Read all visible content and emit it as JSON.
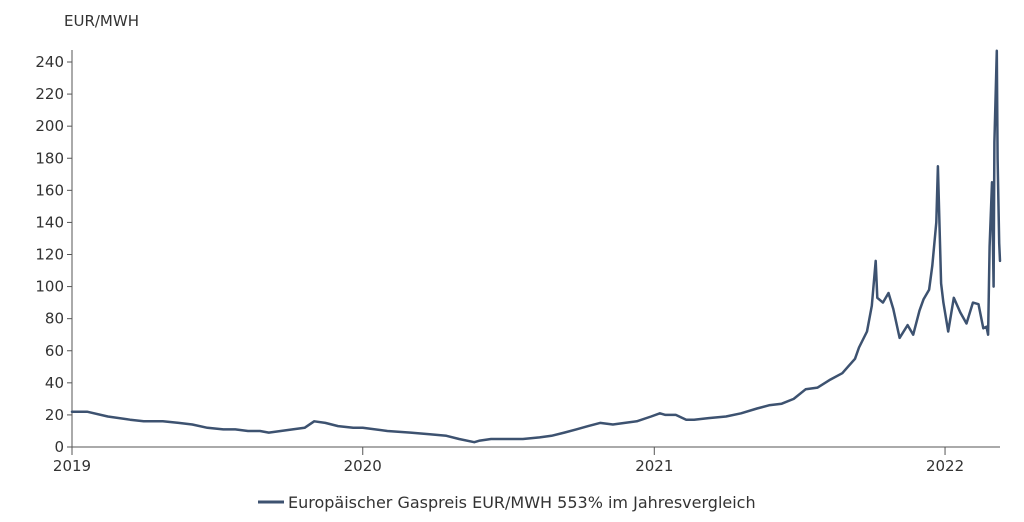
{
  "chart_data": {
    "type": "line",
    "ylabel": "EUR/MWH",
    "ylim": [
      0,
      250
    ],
    "yticks": [
      "0",
      "20",
      "40",
      "60",
      "80",
      "100",
      "120",
      "140",
      "160",
      "180",
      "200",
      "220",
      "240"
    ],
    "xticks": [
      "2019",
      "2020",
      "2021",
      "2022"
    ],
    "xlim": [
      "2019-01-01",
      "2022-03-11"
    ],
    "grid": false,
    "legend_position": "bottom",
    "colors": {
      "series": "#3d5270",
      "axis": "#555555",
      "text": "#333333"
    },
    "series": [
      {
        "name": "Europäischer Gaspreis EUR/MWH 553% im Jahresvergleich",
        "x": [
          "2019-01-01",
          "2019-01-20",
          "2019-02-15",
          "2019-03-15",
          "2019-04-01",
          "2019-04-25",
          "2019-05-15",
          "2019-06-01",
          "2019-06-20",
          "2019-07-10",
          "2019-07-25",
          "2019-08-10",
          "2019-08-25",
          "2019-09-05",
          "2019-09-20",
          "2019-10-05",
          "2019-10-20",
          "2019-11-01",
          "2019-11-15",
          "2019-12-01",
          "2019-12-20",
          "2020-01-01",
          "2020-02-01",
          "2020-03-01",
          "2020-03-25",
          "2020-04-15",
          "2020-05-01",
          "2020-05-20",
          "2020-05-27",
          "2020-06-10",
          "2020-07-01",
          "2020-07-20",
          "2020-08-10",
          "2020-08-25",
          "2020-09-10",
          "2020-09-25",
          "2020-10-10",
          "2020-10-25",
          "2020-11-10",
          "2020-11-25",
          "2020-12-10",
          "2020-12-28",
          "2021-01-08",
          "2021-01-15",
          "2021-01-28",
          "2021-02-10",
          "2021-02-20",
          "2021-03-10",
          "2021-04-01",
          "2021-04-20",
          "2021-05-10",
          "2021-05-25",
          "2021-06-10",
          "2021-06-25",
          "2021-07-10",
          "2021-07-25",
          "2021-08-10",
          "2021-08-25",
          "2021-09-01",
          "2021-09-10",
          "2021-09-15",
          "2021-09-25",
          "2021-10-01",
          "2021-10-06",
          "2021-10-08",
          "2021-10-15",
          "2021-10-22",
          "2021-10-28",
          "2021-11-05",
          "2021-11-15",
          "2021-11-22",
          "2021-11-30",
          "2021-12-05",
          "2021-12-12",
          "2021-12-16",
          "2021-12-21",
          "2021-12-23",
          "2021-12-27",
          "2021-12-30",
          "2022-01-05",
          "2022-01-12",
          "2022-01-20",
          "2022-01-28",
          "2022-02-05",
          "2022-02-12",
          "2022-02-18",
          "2022-02-22",
          "2022-02-24",
          "2022-02-26",
          "2022-03-01",
          "2022-03-03",
          "2022-03-04",
          "2022-03-07",
          "2022-03-08",
          "2022-03-10",
          "2022-03-11"
        ],
        "values": [
          22,
          22,
          19,
          17,
          16,
          16,
          15,
          14,
          12,
          11,
          11,
          10,
          10,
          9,
          10,
          11,
          12,
          16,
          15,
          13,
          12,
          12,
          10,
          9,
          8,
          7,
          5,
          3,
          4,
          5,
          5,
          5,
          6,
          7,
          9,
          11,
          13,
          15,
          14,
          15,
          16,
          19,
          21,
          20,
          20,
          17,
          17,
          18,
          19,
          21,
          24,
          26,
          27,
          30,
          36,
          37,
          42,
          46,
          50,
          55,
          62,
          72,
          88,
          116,
          93,
          90,
          96,
          86,
          68,
          76,
          70,
          85,
          92,
          98,
          113,
          140,
          175,
          102,
          90,
          72,
          93,
          84,
          77,
          90,
          89,
          74,
          75,
          70,
          125,
          165,
          100,
          190,
          247,
          180,
          127,
          116
        ]
      }
    ]
  }
}
